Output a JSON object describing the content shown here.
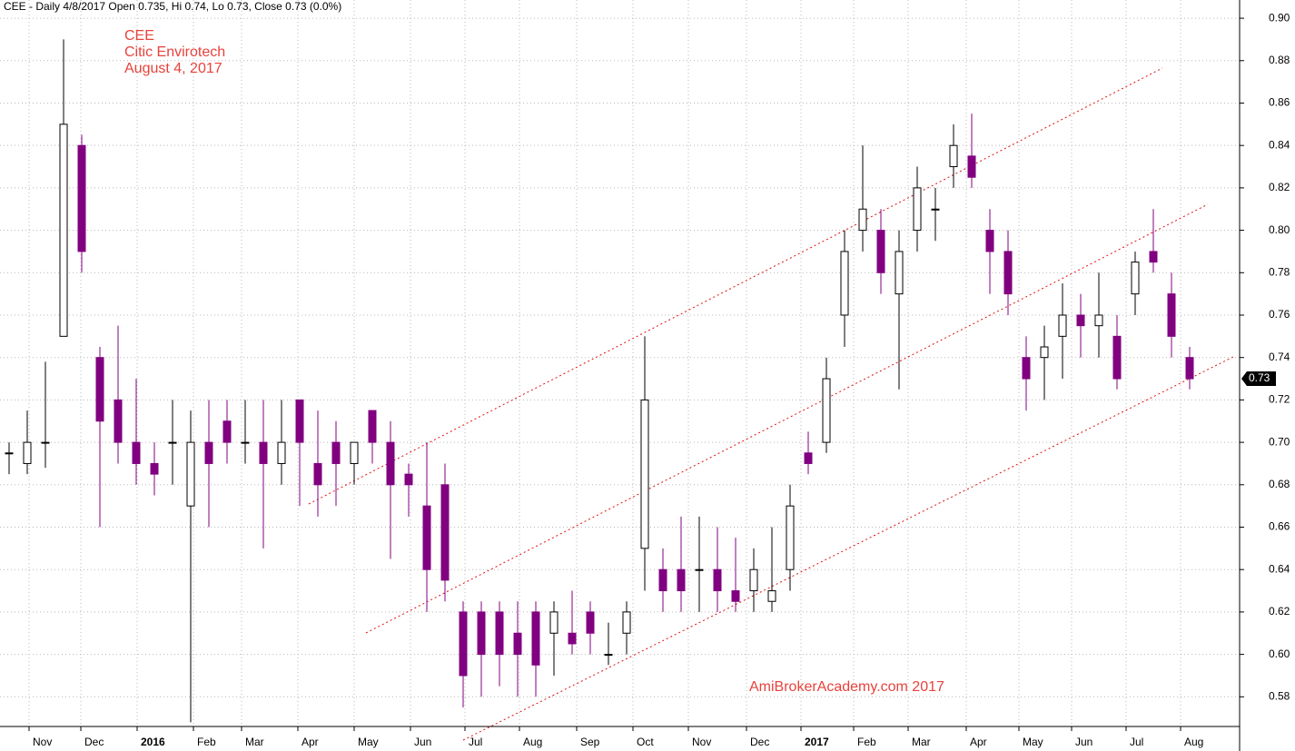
{
  "chart_data": {
    "type": "candlestick",
    "header": "CEE - Daily 4/8/2017 Open 0.735, Hi 0.74, Lo 0.73, Close 0.73 (0.0%)",
    "annotations": [
      "CEE",
      "Citic Envirotech",
      "August 4, 2017"
    ],
    "watermark": "AmiBrokerAcademy.com  2017",
    "up_color": "#000000",
    "down_color": "#800080",
    "open": [
      0.695,
      0.69,
      0.7,
      0.75,
      0.84,
      0.74,
      0.72,
      0.7,
      0.69,
      0.7,
      0.67,
      0.7,
      0.71,
      0.7,
      0.7,
      0.69,
      0.72,
      0.69,
      0.7,
      0.69,
      0.715,
      0.7,
      0.685,
      0.67,
      0.68,
      0.62,
      0.62,
      0.62,
      0.61,
      0.62,
      0.61,
      0.61,
      0.62,
      0.6,
      0.61,
      0.65,
      0.64,
      0.64,
      0.64,
      0.64,
      0.63,
      0.63,
      0.625,
      0.64,
      0.695,
      0.7,
      0.76,
      0.8,
      0.8,
      0.77,
      0.8,
      0.81,
      0.83,
      0.835,
      0.8,
      0.79,
      0.74,
      0.74,
      0.75,
      0.76,
      0.755,
      0.75,
      0.77,
      0.79,
      0.77,
      0.74
    ],
    "high": [
      0.7,
      0.715,
      0.738,
      0.89,
      0.845,
      0.745,
      0.755,
      0.73,
      0.7,
      0.72,
      0.715,
      0.72,
      0.72,
      0.72,
      0.72,
      0.72,
      0.72,
      0.715,
      0.71,
      0.7,
      0.715,
      0.71,
      0.69,
      0.7,
      0.69,
      0.625,
      0.625,
      0.625,
      0.625,
      0.625,
      0.625,
      0.63,
      0.625,
      0.615,
      0.625,
      0.75,
      0.65,
      0.665,
      0.665,
      0.66,
      0.655,
      0.65,
      0.66,
      0.68,
      0.705,
      0.74,
      0.8,
      0.84,
      0.81,
      0.8,
      0.83,
      0.82,
      0.85,
      0.855,
      0.81,
      0.8,
      0.75,
      0.755,
      0.775,
      0.77,
      0.78,
      0.76,
      0.79,
      0.81,
      0.78,
      0.745
    ],
    "low": [
      0.685,
      0.685,
      0.688,
      0.75,
      0.78,
      0.66,
      0.69,
      0.68,
      0.675,
      0.68,
      0.568,
      0.66,
      0.69,
      0.69,
      0.65,
      0.68,
      0.67,
      0.665,
      0.67,
      0.68,
      0.69,
      0.645,
      0.665,
      0.62,
      0.625,
      0.575,
      0.58,
      0.585,
      0.58,
      0.58,
      0.59,
      0.6,
      0.6,
      0.595,
      0.6,
      0.63,
      0.62,
      0.62,
      0.62,
      0.62,
      0.62,
      0.62,
      0.62,
      0.63,
      0.685,
      0.695,
      0.745,
      0.79,
      0.77,
      0.725,
      0.79,
      0.795,
      0.82,
      0.82,
      0.77,
      0.76,
      0.715,
      0.72,
      0.73,
      0.74,
      0.74,
      0.725,
      0.76,
      0.78,
      0.74,
      0.725
    ],
    "close": [
      0.695,
      0.7,
      0.7,
      0.85,
      0.79,
      0.71,
      0.7,
      0.69,
      0.685,
      0.7,
      0.7,
      0.69,
      0.7,
      0.7,
      0.69,
      0.7,
      0.7,
      0.68,
      0.69,
      0.7,
      0.7,
      0.68,
      0.68,
      0.64,
      0.635,
      0.59,
      0.6,
      0.6,
      0.6,
      0.595,
      0.62,
      0.605,
      0.61,
      0.6,
      0.62,
      0.72,
      0.63,
      0.63,
      0.64,
      0.63,
      0.625,
      0.64,
      0.63,
      0.67,
      0.69,
      0.73,
      0.79,
      0.81,
      0.78,
      0.79,
      0.82,
      0.81,
      0.84,
      0.825,
      0.79,
      0.77,
      0.73,
      0.745,
      0.76,
      0.755,
      0.76,
      0.73,
      0.785,
      0.785,
      0.75,
      0.73
    ],
    "last_price": 0.73,
    "xlim": [
      0,
      68.25
    ],
    "xticks": [
      {
        "value": 1.6,
        "label": "Nov"
      },
      {
        "value": 4.45,
        "label": "Dec"
      },
      {
        "value": 7.55,
        "label": "2016"
      },
      {
        "value": 10.65,
        "label": "Feb"
      },
      {
        "value": 13.3,
        "label": "Mar"
      },
      {
        "value": 16.4,
        "label": "Apr"
      },
      {
        "value": 19.5,
        "label": "May"
      },
      {
        "value": 22.6,
        "label": "Jun"
      },
      {
        "value": 25.6,
        "label": "Jul"
      },
      {
        "value": 28.6,
        "label": "Aug"
      },
      {
        "value": 31.75,
        "label": "Sep"
      },
      {
        "value": 34.85,
        "label": "Oct"
      },
      {
        "value": 37.9,
        "label": "Nov"
      },
      {
        "value": 41.1,
        "label": "Dec"
      },
      {
        "value": 44.1,
        "label": "2017"
      },
      {
        "value": 47,
        "label": "Feb"
      },
      {
        "value": 50,
        "label": "Mar"
      },
      {
        "value": 53.2,
        "label": "Apr"
      },
      {
        "value": 56.1,
        "label": "May"
      },
      {
        "value": 59,
        "label": "Jun"
      },
      {
        "value": 62,
        "label": "Jul"
      },
      {
        "value": 65,
        "label": "Aug"
      }
    ],
    "ylim": [
      0.566,
      0.9086
    ],
    "yticks": [
      0.58,
      {
        "value": 0.6,
        "label": "0.60"
      },
      0.62,
      0.64,
      0.66,
      0.68,
      {
        "value": 0.7,
        "label": "0.70"
      },
      0.72,
      0.74,
      0.76,
      0.78,
      {
        "value": 0.8,
        "label": "0.80"
      },
      0.82,
      0.84,
      0.86,
      0.88,
      {
        "value": 0.9,
        "label": "0.90"
      }
    ],
    "grid": true
  }
}
